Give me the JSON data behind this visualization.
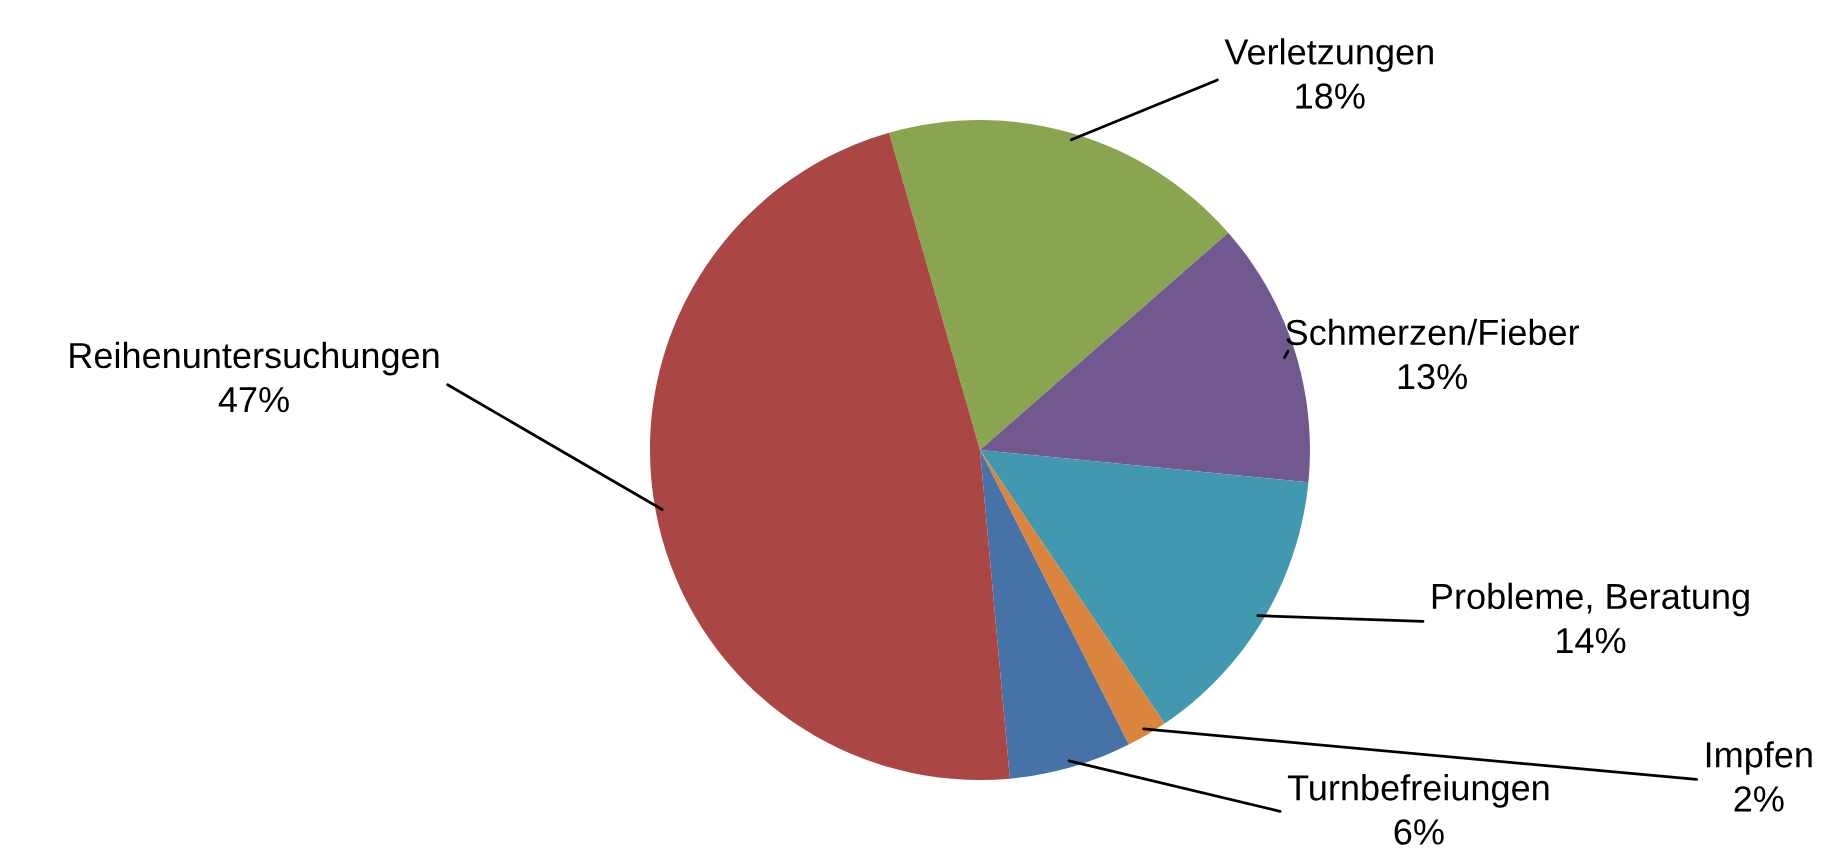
{
  "chart_data": {
    "type": "pie",
    "categories": [
      "Verletzungen",
      "Schmerzen/Fieber",
      "Probleme, Beratung",
      "Impfen",
      "Turnbefreiungen",
      "Reihenuntersuchungen"
    ],
    "values": [
      18,
      13,
      14,
      2,
      6,
      47
    ],
    "colors": [
      "#8aa54f",
      "#71588f",
      "#4198af",
      "#db843d",
      "#4572a7",
      "#aa4643"
    ],
    "value_labels": [
      "18%",
      "13%",
      "14%",
      "2%",
      "6%",
      "47%"
    ],
    "legend": false
  }
}
